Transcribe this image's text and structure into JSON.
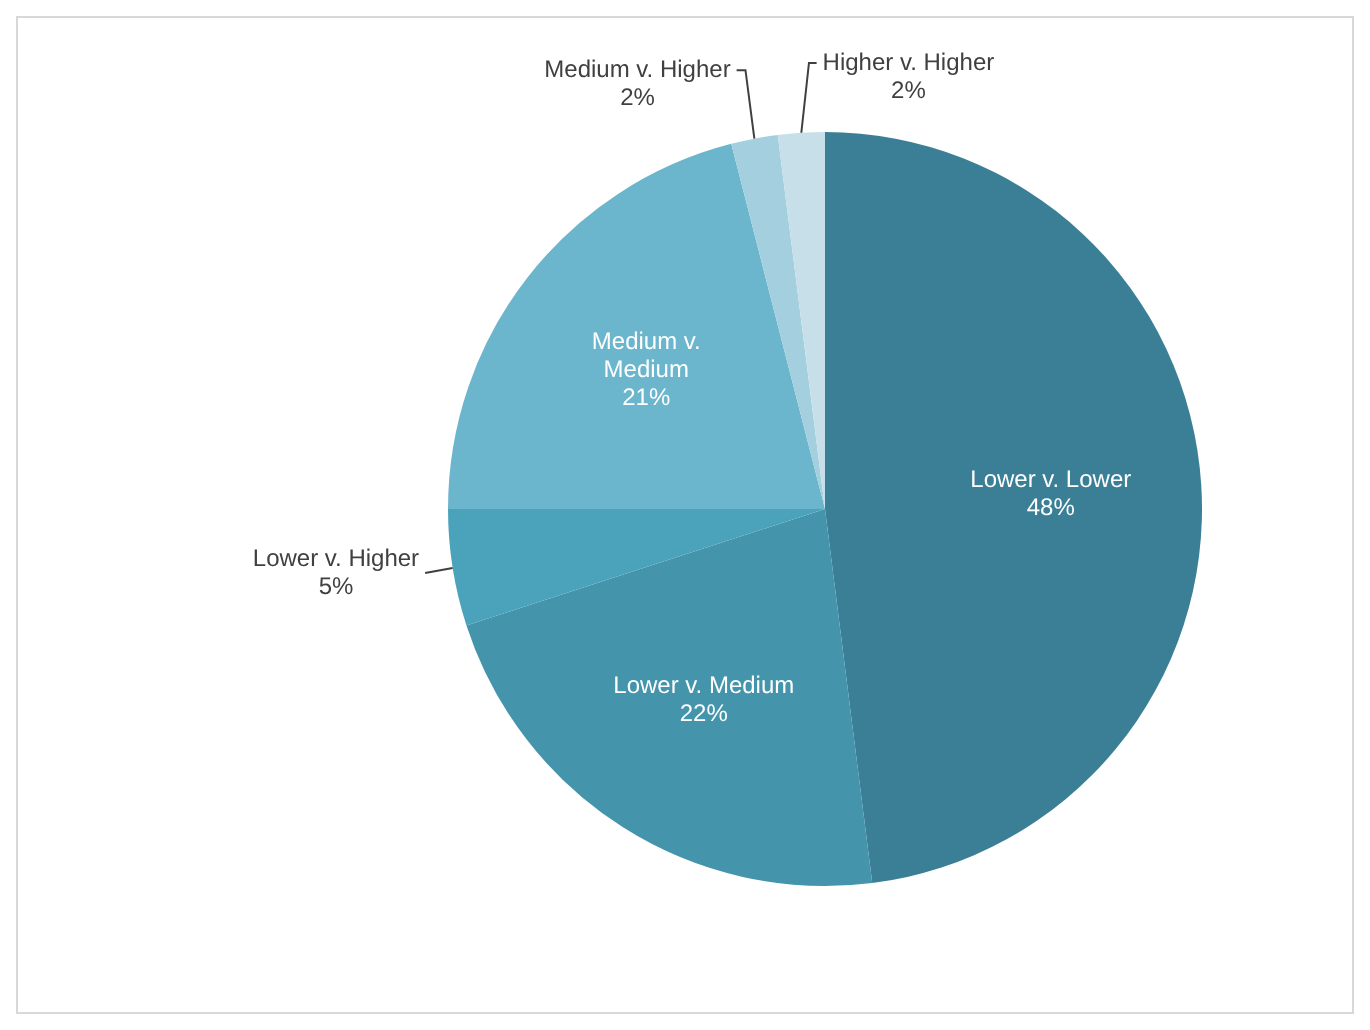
{
  "chart_data": {
    "type": "pie",
    "categories": [
      "Lower v. Lower",
      "Lower v. Medium",
      "Lower v. Higher",
      "Medium v. Medium",
      "Medium v. Higher",
      "Higher v. Higher"
    ],
    "values": [
      48,
      22,
      5,
      21,
      2,
      2
    ],
    "value_labels": [
      "48%",
      "22%",
      "5%",
      "21%",
      "2%",
      "2%"
    ],
    "colors": [
      "#3a7f96",
      "#4494ab",
      "#4aa3bb",
      "#6bb5cd",
      "#a3cfdf",
      "#c6dfe9"
    ],
    "legend": false
  }
}
